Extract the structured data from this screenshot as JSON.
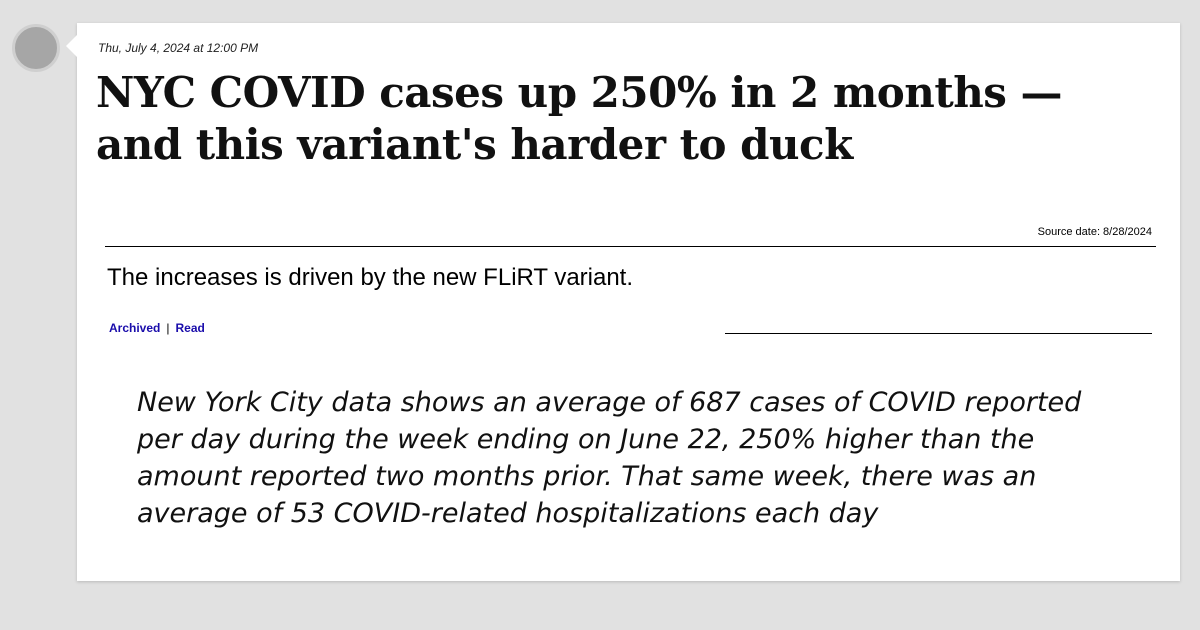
{
  "post": {
    "timestamp": "Thu, July 4, 2024 at 12:00 PM",
    "headline": "NYC COVID cases up 250% in 2 months — and this variant's harder to duck",
    "source_date": "Source date: 8/28/2024",
    "subtitle": "The increases is driven by the new FLiRT variant.",
    "links": {
      "archived": "Archived",
      "separator": "|",
      "read": "Read"
    },
    "quote": "New York City data shows an average of 687 cases of COVID reported per day during the week ending on June 22, 250% higher than the amount reported two months prior. That same week, there was an average of 53 COVID-related hospitalizations each day"
  },
  "colors": {
    "page_background": "#e1e1e1",
    "card_background": "#ffffff",
    "link": "#1a0dab",
    "avatar": "#a6a6a6"
  }
}
